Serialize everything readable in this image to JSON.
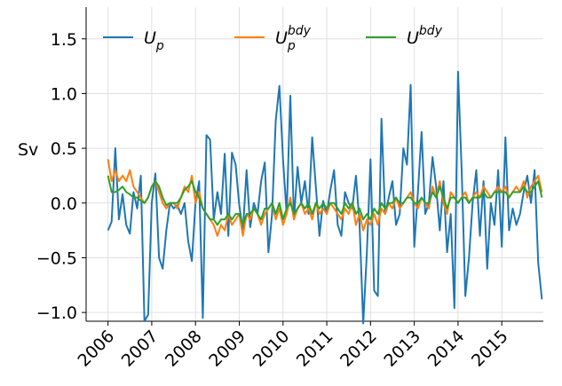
{
  "chart_data": {
    "type": "line",
    "ylabel": "Sv",
    "x": [
      2006,
      2006.083,
      2006.167,
      2006.25,
      2006.333,
      2006.417,
      2006.5,
      2006.583,
      2006.667,
      2006.75,
      2006.833,
      2006.917,
      2007,
      2007.083,
      2007.167,
      2007.25,
      2007.333,
      2007.417,
      2007.5,
      2007.583,
      2007.667,
      2007.75,
      2007.833,
      2007.917,
      2008,
      2008.083,
      2008.167,
      2008.25,
      2008.333,
      2008.417,
      2008.5,
      2008.583,
      2008.667,
      2008.75,
      2008.833,
      2008.917,
      2009,
      2009.083,
      2009.167,
      2009.25,
      2009.333,
      2009.417,
      2009.5,
      2009.583,
      2009.667,
      2009.75,
      2009.833,
      2009.917,
      2010,
      2010.083,
      2010.167,
      2010.25,
      2010.333,
      2010.417,
      2010.5,
      2010.583,
      2010.667,
      2010.75,
      2010.833,
      2010.917,
      2011,
      2011.083,
      2011.167,
      2011.25,
      2011.333,
      2011.417,
      2011.5,
      2011.583,
      2011.667,
      2011.75,
      2011.833,
      2011.917,
      2012,
      2012.083,
      2012.167,
      2012.25,
      2012.333,
      2012.417,
      2012.5,
      2012.583,
      2012.667,
      2012.75,
      2012.833,
      2012.917,
      2013,
      2013.083,
      2013.167,
      2013.25,
      2013.333,
      2013.417,
      2013.5,
      2013.583,
      2013.667,
      2013.75,
      2013.833,
      2013.917,
      2014,
      2014.083,
      2014.167,
      2014.25,
      2014.333,
      2014.417,
      2014.5,
      2014.583,
      2014.667,
      2014.75,
      2014.833,
      2014.917,
      2015,
      2015.083,
      2015.167,
      2015.25,
      2015.333,
      2015.417,
      2015.5,
      2015.583,
      2015.667,
      2015.75,
      2015.833,
      2015.917
    ],
    "series": [
      {
        "name": "U_p",
        "color": "#1f77b4",
        "values": [
          -0.25,
          -0.17,
          0.5,
          -0.15,
          0.08,
          -0.2,
          -0.28,
          0.1,
          -0.05,
          0.25,
          -1.08,
          -1.02,
          0,
          0.27,
          -0.5,
          -0.6,
          -0.25,
          0,
          -0.05,
          -0.02,
          -0.1,
          0,
          -0.35,
          -0.53,
          0,
          0.2,
          -1.05,
          0.62,
          0.58,
          -0.15,
          0.1,
          -0.1,
          0.45,
          -0.3,
          0.46,
          0.35,
          -0.02,
          -0.25,
          0.3,
          -0.22,
          0,
          -0.1,
          0.2,
          0.37,
          -0.45,
          -0.1,
          0.75,
          1.07,
          0.4,
          -0.1,
          0.98,
          -0.15,
          0.33,
          0,
          0.2,
          -0.1,
          0.6,
          0.15,
          -0.3,
          0.02,
          -0.1,
          0.12,
          0.3,
          -0.2,
          -0.3,
          0.1,
          0,
          -0.05,
          0.25,
          -0.2,
          -1.1,
          -0.45,
          0.4,
          -0.8,
          -0.85,
          0.77,
          -0.1,
          0.05,
          0.2,
          -0.2,
          -0.1,
          0.5,
          0.35,
          1.08,
          -0.4,
          0.1,
          0.65,
          -0.1,
          0,
          0.42,
          0.15,
          -0.25,
          0.2,
          -0.45,
          -0.1,
          -0.96,
          1.2,
          0.3,
          -0.85,
          -0.5,
          0,
          0.3,
          -0.3,
          0.2,
          -0.6,
          0,
          -0.2,
          0.3,
          -0.4,
          0.6,
          -0.25,
          -0.05,
          -0.2,
          -0.1,
          0.1,
          0.25,
          0,
          0.3,
          -0.55,
          -0.88
        ]
      },
      {
        "name": "U_p^{bdy}",
        "color": "#ff7f0e",
        "values": [
          0.4,
          0.2,
          0.3,
          0.2,
          0.25,
          0.2,
          0.3,
          0.15,
          0.1,
          0.05,
          0,
          0.05,
          0.15,
          0.2,
          0.1,
          0,
          -0.05,
          0,
          0,
          -0.05,
          0.05,
          0.15,
          0.1,
          0.25,
          0,
          0.1,
          -0.05,
          -0.1,
          -0.15,
          -0.2,
          -0.3,
          -0.2,
          -0.25,
          -0.1,
          -0.2,
          -0.15,
          -0.1,
          -0.3,
          -0.1,
          -0.15,
          -0.05,
          -0.1,
          -0.2,
          -0.1,
          -0.05,
          0,
          -0.15,
          -0.05,
          -0.2,
          -0.1,
          0.05,
          -0.15,
          -0.05,
          0,
          -0.1,
          -0.05,
          -0.15,
          0,
          -0.1,
          -0.05,
          -0.1,
          0,
          -0.05,
          -0.1,
          -0.15,
          -0.05,
          -0.1,
          0,
          -0.2,
          -0.1,
          -0.25,
          -0.15,
          -0.2,
          -0.1,
          -0.2,
          -0.05,
          -0.1,
          0,
          -0.05,
          0.05,
          -0.05,
          0,
          0.05,
          0.1,
          0,
          -0.05,
          0.05,
          0,
          -0.05,
          0.15,
          0.05,
          0.2,
          0,
          -0.1,
          0.1,
          0.05,
          0,
          0.05,
          0.1,
          0,
          0.05,
          0.1,
          0.05,
          0.15,
          0.1,
          0.05,
          0.1,
          0.15,
          0.1,
          0.15,
          0.05,
          0.1,
          0.15,
          0.1,
          0.2,
          0.05,
          0.15,
          0.2,
          0.25,
          0.1
        ]
      },
      {
        "name": "U^{bdy}",
        "color": "#2ca02c",
        "values": [
          0.25,
          0.1,
          0.1,
          0.12,
          0.15,
          0.1,
          0.08,
          0.05,
          0.05,
          0.02,
          0,
          0.05,
          0.15,
          0.2,
          0.15,
          0.05,
          -0.02,
          0,
          0,
          0,
          0.05,
          0.12,
          0.15,
          0.2,
          0.1,
          0.05,
          -0.05,
          -0.1,
          -0.15,
          -0.15,
          -0.2,
          -0.15,
          -0.15,
          -0.1,
          -0.15,
          -0.1,
          -0.1,
          -0.2,
          -0.1,
          -0.1,
          -0.05,
          -0.1,
          -0.15,
          -0.05,
          -0.05,
          0,
          -0.1,
          0,
          -0.15,
          -0.05,
          0,
          -0.1,
          -0.05,
          0,
          -0.05,
          0,
          -0.1,
          0,
          -0.05,
          0,
          -0.05,
          0,
          0,
          -0.05,
          -0.1,
          0,
          -0.05,
          0,
          -0.1,
          -0.05,
          -0.15,
          -0.1,
          -0.15,
          -0.05,
          -0.1,
          0,
          -0.05,
          0,
          0,
          0.05,
          0,
          0,
          0.05,
          0.05,
          0,
          0,
          0.05,
          0,
          0,
          0.1,
          0.05,
          0.15,
          0.05,
          -0.05,
          0.05,
          0.05,
          0,
          0.05,
          0.05,
          0,
          0.05,
          0.05,
          0.05,
          0.1,
          0.05,
          0.05,
          0.1,
          0.1,
          0.1,
          0.1,
          0.05,
          0.1,
          0.1,
          0.1,
          0.15,
          0.1,
          0.1,
          0.15,
          0.2,
          0.05
        ]
      }
    ],
    "xlim": [
      2005.5,
      2015.95
    ],
    "ylim": [
      -1.08,
      1.79
    ],
    "xticks": [
      2006,
      2007,
      2008,
      2009,
      2010,
      2011,
      2012,
      2013,
      2014,
      2015
    ],
    "yticks": [
      {
        "value": -1,
        "label": "−1.0"
      },
      {
        "value": -0.5,
        "label": "−0.5"
      },
      {
        "value": 0,
        "label": "0.0"
      },
      0.5,
      {
        "value": 1,
        "label": "1.0"
      },
      1.5
    ],
    "grid": true,
    "legend": "top"
  }
}
